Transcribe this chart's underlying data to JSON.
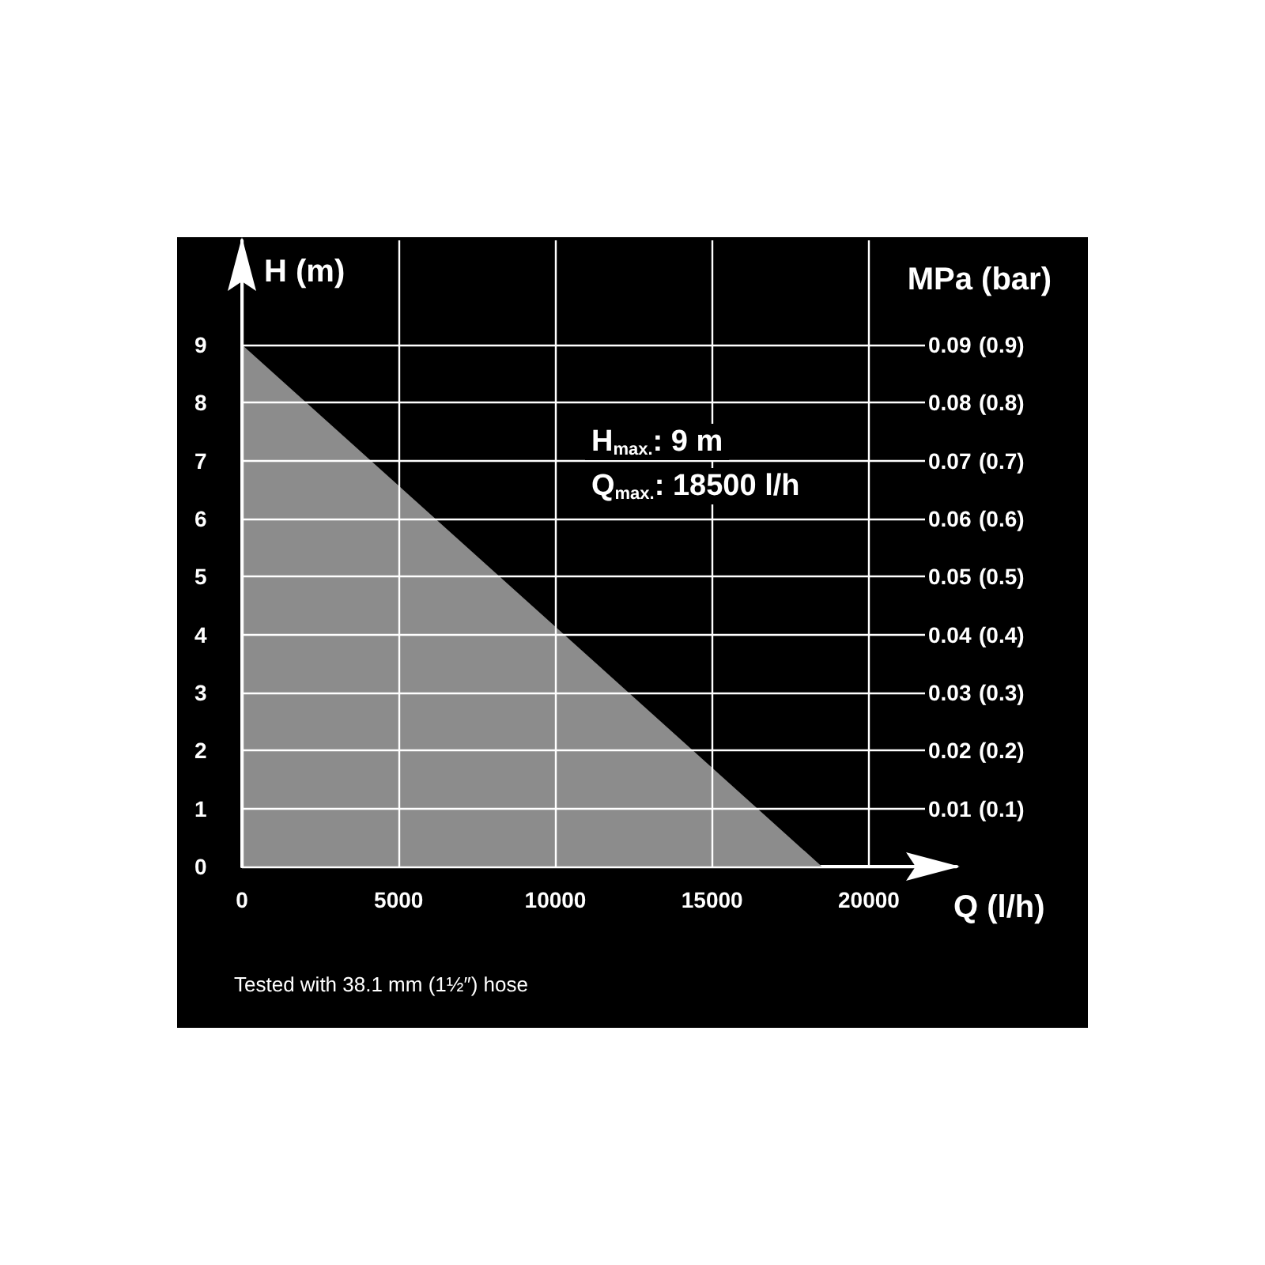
{
  "chart_data": {
    "type": "area",
    "x": [
      0,
      18500
    ],
    "values": [
      9,
      0
    ],
    "color": "#8c8c8c",
    "xlim": [
      0,
      22800
    ],
    "xticks": [
      0,
      5000,
      10000,
      15000,
      20000
    ],
    "ylim": [
      0,
      10.8
    ],
    "yticks": [
      0,
      1,
      2,
      3,
      4,
      5,
      6,
      7,
      8,
      9
    ],
    "y2lim": [
      0,
      0.108
    ],
    "y2ticks": [
      0.01,
      0.02,
      0.03,
      0.04,
      0.05,
      0.06,
      0.07,
      0.08,
      0.09
    ],
    "y3lim": [
      0,
      1.08
    ],
    "y3ticks": [
      {
        "value": 0.1,
        "label": "(0.1)"
      },
      {
        "value": 0.2,
        "label": "(0.2)"
      },
      {
        "value": 0.3,
        "label": "(0.3)"
      },
      {
        "value": 0.4,
        "label": "(0.4)"
      },
      {
        "value": 0.5,
        "label": "(0.5)"
      },
      {
        "value": 0.6,
        "label": "(0.6)"
      },
      {
        "value": 0.7,
        "label": "(0.7)"
      },
      {
        "value": 0.8,
        "label": "(0.8)"
      },
      {
        "value": 0.9,
        "label": "(0.9)"
      }
    ],
    "xlabel": "Q (l/h)",
    "ylabel": "H (m)",
    "y2label": "MPa (bar)",
    "grid": true,
    "annotations": [
      "H$_{max.}$: 9 m",
      "Q$_{max.}$: 18500 l/h",
      "Tested with 38.1 mm (1½″) hose"
    ]
  }
}
